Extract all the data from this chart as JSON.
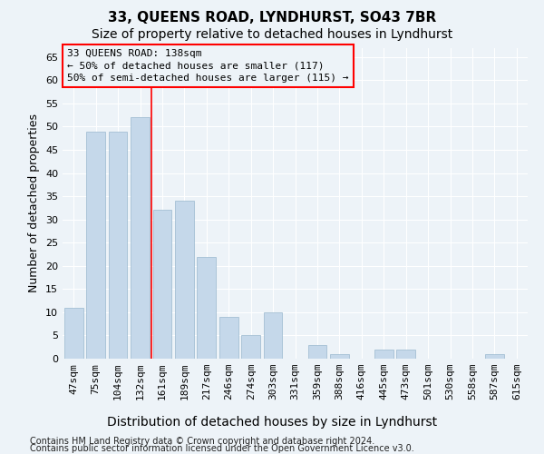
{
  "title": "33, QUEENS ROAD, LYNDHURST, SO43 7BR",
  "subtitle": "Size of property relative to detached houses in Lyndhurst",
  "xlabel": "Distribution of detached houses by size in Lyndhurst",
  "ylabel": "Number of detached properties",
  "bar_color": "#c5d8ea",
  "bar_edge_color": "#9ab8ce",
  "categories": [
    "47sqm",
    "75sqm",
    "104sqm",
    "132sqm",
    "161sqm",
    "189sqm",
    "217sqm",
    "246sqm",
    "274sqm",
    "303sqm",
    "331sqm",
    "359sqm",
    "388sqm",
    "416sqm",
    "445sqm",
    "473sqm",
    "501sqm",
    "530sqm",
    "558sqm",
    "587sqm",
    "615sqm"
  ],
  "values": [
    11,
    49,
    49,
    52,
    32,
    34,
    22,
    9,
    5,
    10,
    0,
    3,
    1,
    0,
    2,
    2,
    0,
    0,
    0,
    1,
    0
  ],
  "ylim": [
    0,
    67
  ],
  "yticks": [
    0,
    5,
    10,
    15,
    20,
    25,
    30,
    35,
    40,
    45,
    50,
    55,
    60,
    65
  ],
  "vline_x": 3.5,
  "annotation_text": "33 QUEENS ROAD: 138sqm\n← 50% of detached houses are smaller (117)\n50% of semi-detached houses are larger (115) →",
  "footnote1": "Contains HM Land Registry data © Crown copyright and database right 2024.",
  "footnote2": "Contains public sector information licensed under the Open Government Licence v3.0.",
  "bg_color": "#edf3f8",
  "grid_color": "#ffffff",
  "title_fontsize": 11,
  "subtitle_fontsize": 10,
  "xlabel_fontsize": 10,
  "ylabel_fontsize": 9,
  "tick_fontsize": 8,
  "annot_fontsize": 8,
  "footnote_fontsize": 7
}
